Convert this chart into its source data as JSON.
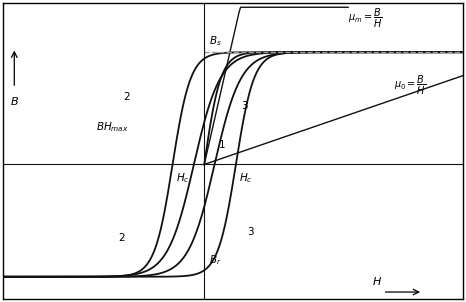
{
  "xlim": [
    -3.5,
    4.5
  ],
  "ylim": [
    -1.5,
    1.8
  ],
  "Bs": 1.25,
  "Br": 0.95,
  "Hc2": 0.18,
  "Hc3": 0.55,
  "bg_color": "#ffffff",
  "curve_color": "#111111",
  "dashed_color": "#999999",
  "label_fontsize": 8,
  "annotation_fontsize": 7.5,
  "mu_m_slope": 2.8,
  "mu_0_slope": 0.22
}
